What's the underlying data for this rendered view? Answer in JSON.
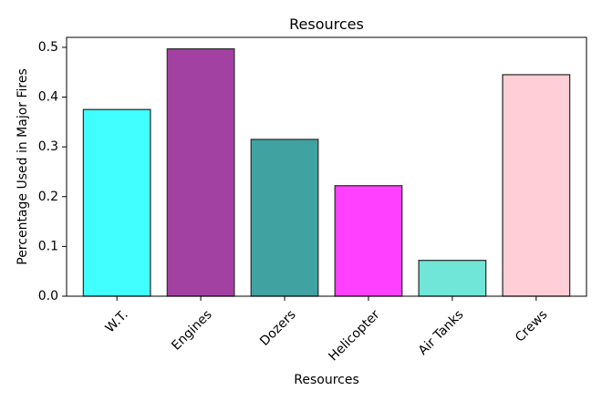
{
  "chart_data": {
    "type": "bar",
    "title": "Resources",
    "xlabel": "Resources",
    "ylabel": "Percentage Used in Major Fires",
    "categories": [
      "W.T.",
      "Engines",
      "Dozers",
      "Helicopter",
      "Air Tanks",
      "Crews"
    ],
    "values": [
      0.375,
      0.497,
      0.315,
      0.222,
      0.072,
      0.445
    ],
    "colors": [
      "#41ffff",
      "#a241a2",
      "#41a2a2",
      "#ff41ff",
      "#70e6d9",
      "#ffced6"
    ],
    "edge_color": "#333333",
    "ylim": [
      0,
      0.52
    ],
    "yticks": [
      0.0,
      0.1,
      0.2,
      0.3,
      0.4,
      0.5
    ],
    "ytick_labels": [
      "0.0",
      "0.1",
      "0.2",
      "0.3",
      "0.4",
      "0.5"
    ],
    "grid": false,
    "legend": false
  }
}
